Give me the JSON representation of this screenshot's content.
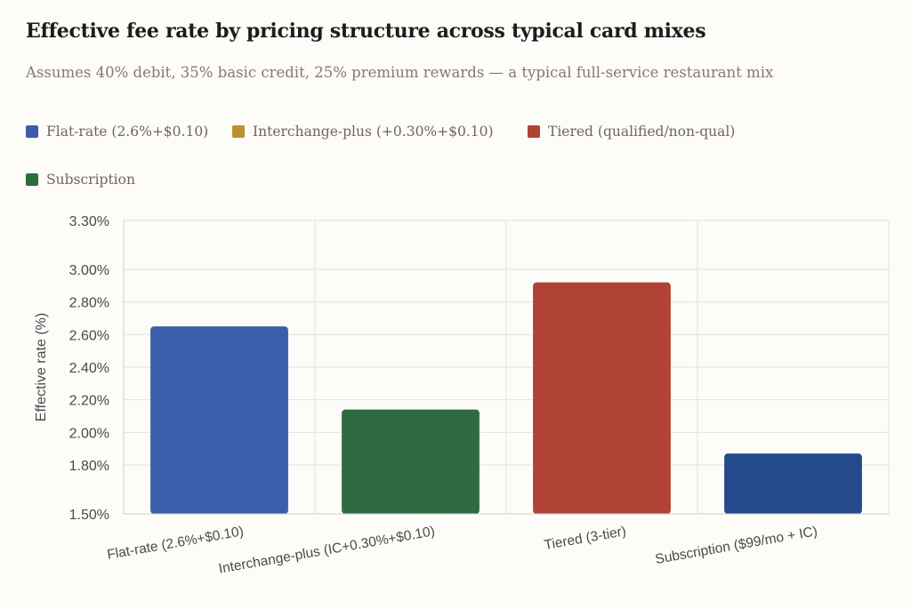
{
  "colors": {
    "flat_rate": "#3a5ea9",
    "interchange_plus": "#b8922e",
    "tiered": "#b04236",
    "subscription": "#2f6b40",
    "subscription_bar": "#244a8c",
    "grid": "#e2e2e2",
    "axis": "#cfcfcf",
    "tick_text": "#4a4a4a"
  },
  "header": {
    "title": "Effective fee rate by pricing structure across typical card mixes",
    "subtitle": "Assumes 40% debit, 35% basic credit, 25% premium rewards — a typical full-service restaurant mix"
  },
  "legend": [
    {
      "label": "Flat-rate (2.6%+$0.10)",
      "color": "#3a5ea9"
    },
    {
      "label": "Interchange-plus (+0.30%+$0.10)",
      "color": "#b8922e"
    },
    {
      "label": "Tiered (qualified/non-qual)",
      "color": "#b04236"
    },
    {
      "label": "Subscription",
      "color": "#2f6b40"
    }
  ],
  "chart_data": {
    "type": "bar",
    "title": "Effective fee rate by pricing structure across typical card mixes",
    "subtitle": "Assumes 40% debit, 35% basic credit, 25% premium rewards — a typical full-service restaurant mix",
    "xlabel": "",
    "ylabel": "Effective rate (%)",
    "ylim": [
      1.5,
      3.3
    ],
    "y_ticks": [
      1.5,
      1.8,
      2.0,
      2.2,
      2.4,
      2.6,
      2.8,
      3.0,
      3.3
    ],
    "y_tick_labels": [
      "1.50%",
      "1.80%",
      "2.00%",
      "2.20%",
      "2.40%",
      "2.60%",
      "2.80%",
      "3.00%",
      "3.30%"
    ],
    "categories": [
      "Flat-rate (2.6%+$0.10)",
      "Interchange-plus (IC+0.30%+$0.10)",
      "Tiered (3-tier)",
      "Subscription ($99/mo + IC)"
    ],
    "values": [
      2.65,
      2.14,
      2.92,
      1.87
    ],
    "bar_colors": [
      "#3a5ea9",
      "#2f6b40",
      "#b04236",
      "#244a8c"
    ],
    "grid": true,
    "legend_position": "top-left"
  }
}
